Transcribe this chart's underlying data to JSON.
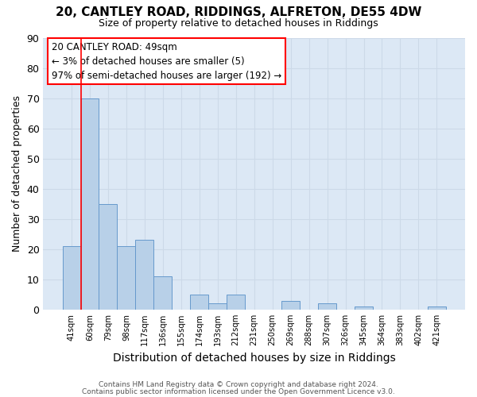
{
  "title": "20, CANTLEY ROAD, RIDDINGS, ALFRETON, DE55 4DW",
  "subtitle": "Size of property relative to detached houses in Riddings",
  "xlabel": "Distribution of detached houses by size in Riddings",
  "ylabel": "Number of detached properties",
  "bar_labels": [
    "41sqm",
    "60sqm",
    "79sqm",
    "98sqm",
    "117sqm",
    "136sqm",
    "155sqm",
    "174sqm",
    "193sqm",
    "212sqm",
    "231sqm",
    "250sqm",
    "269sqm",
    "288sqm",
    "307sqm",
    "326sqm",
    "345sqm",
    "364sqm",
    "383sqm",
    "402sqm",
    "421sqm"
  ],
  "bar_values": [
    21,
    70,
    35,
    21,
    23,
    11,
    0,
    5,
    2,
    5,
    0,
    0,
    3,
    0,
    2,
    0,
    1,
    0,
    0,
    0,
    1
  ],
  "bar_color": "#b8d0e8",
  "bar_edge_color": "#6699cc",
  "red_line_x": 0,
  "annotation_box_text": "20 CANTLEY ROAD: 49sqm\n← 3% of detached houses are smaller (5)\n97% of semi-detached houses are larger (192) →",
  "ylim": [
    0,
    90
  ],
  "yticks": [
    0,
    10,
    20,
    30,
    40,
    50,
    60,
    70,
    80,
    90
  ],
  "grid_color": "#ccd9e8",
  "background_color": "#dce8f5",
  "footer_line1": "Contains HM Land Registry data © Crown copyright and database right 2024.",
  "footer_line2": "Contains public sector information licensed under the Open Government Licence v3.0."
}
